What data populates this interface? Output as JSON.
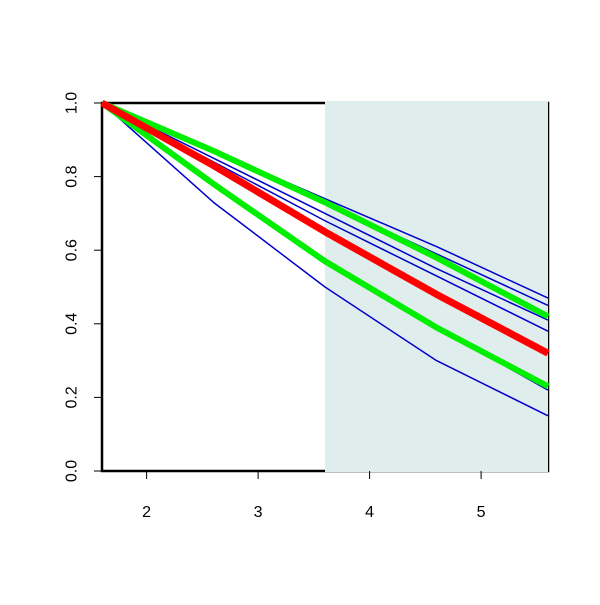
{
  "chart_data": {
    "type": "line",
    "x": [
      1.6,
      2.6,
      3.6,
      4.6,
      5.6
    ],
    "series": [
      {
        "color": "#0000cc",
        "width": 1.5,
        "values": [
          1.0,
          0.87,
          0.74,
          0.61,
          0.47
        ]
      },
      {
        "color": "#0000cc",
        "width": 1.5,
        "values": [
          1.0,
          0.87,
          0.73,
          0.59,
          0.45
        ]
      },
      {
        "color": "#0000cc",
        "width": 1.5,
        "values": [
          1.0,
          0.85,
          0.7,
          0.55,
          0.41
        ]
      },
      {
        "color": "#0000cc",
        "width": 1.5,
        "values": [
          1.0,
          0.84,
          0.68,
          0.53,
          0.38
        ]
      },
      {
        "color": "#0000cc",
        "width": 1.5,
        "values": [
          1.0,
          0.78,
          0.57,
          0.39,
          0.22
        ]
      },
      {
        "color": "#0000cc",
        "width": 1.5,
        "values": [
          1.0,
          0.73,
          0.5,
          0.3,
          0.15
        ]
      },
      {
        "color": "#00ee00",
        "width": 6,
        "values": [
          1.0,
          0.87,
          0.73,
          0.58,
          0.42
        ]
      },
      {
        "color": "#00ee00",
        "width": 6,
        "values": [
          1.0,
          0.78,
          0.57,
          0.39,
          0.23
        ]
      },
      {
        "color": "#ff0000",
        "width": 7,
        "values": [
          1.0,
          0.83,
          0.65,
          0.48,
          0.32
        ]
      }
    ],
    "xlim": [
      1.6,
      5.6
    ],
    "xticks": [
      2,
      3,
      4,
      5
    ],
    "ylim": [
      0,
      1
    ],
    "yticks": [
      {
        "value": 0,
        "label": "0.0"
      },
      0.2,
      0.4,
      0.6,
      0.8,
      {
        "value": 1,
        "label": "1.0"
      }
    ],
    "shaded_region": [
      3.6,
      5.6
    ],
    "shade_color": "#e0eded"
  }
}
